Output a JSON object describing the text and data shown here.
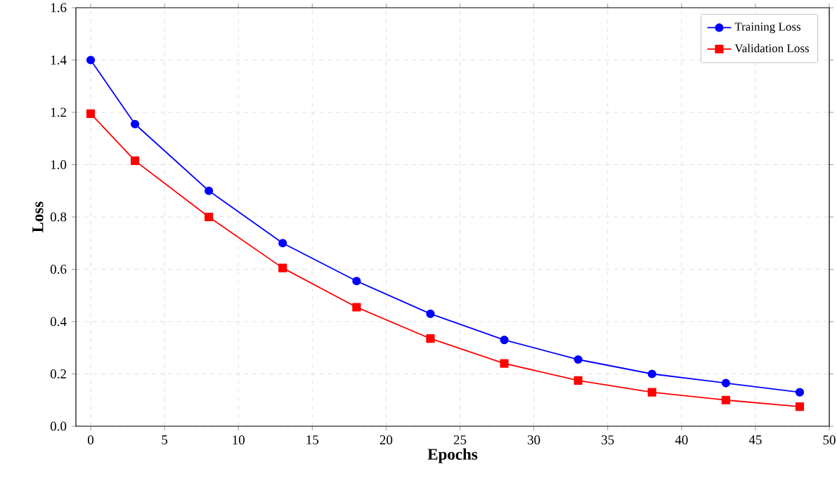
{
  "chart_data": {
    "type": "line",
    "xlabel": "Epochs",
    "ylabel": "Loss",
    "xlim": [
      -1,
      50
    ],
    "ylim": [
      0,
      1.6
    ],
    "xticks": [
      0,
      5,
      10,
      15,
      20,
      25,
      30,
      35,
      40,
      45,
      50
    ],
    "yticks": [
      {
        "value": 0,
        "label": "0.0"
      },
      0.2,
      0.4,
      0.6,
      0.8,
      {
        "value": 1.0,
        "label": "1.0"
      },
      1.2,
      1.4,
      1.6
    ],
    "grid": true,
    "legend": "top right",
    "line_style": "solid",
    "x": [
      0,
      3,
      8,
      13,
      18,
      23,
      28,
      33,
      38,
      43,
      48
    ],
    "series": [
      {
        "name": "Training Loss",
        "color": "#0000ff",
        "marker": "circle",
        "values": [
          1.4,
          1.155,
          0.9,
          0.7,
          0.555,
          0.43,
          0.33,
          0.255,
          0.2,
          0.165,
          0.13
        ]
      },
      {
        "name": "Validation Loss",
        "color": "#ff0000",
        "marker": "square",
        "values": [
          1.195,
          1.015,
          0.8,
          0.605,
          0.455,
          0.335,
          0.24,
          0.175,
          0.13,
          0.1,
          0.075
        ]
      }
    ]
  }
}
